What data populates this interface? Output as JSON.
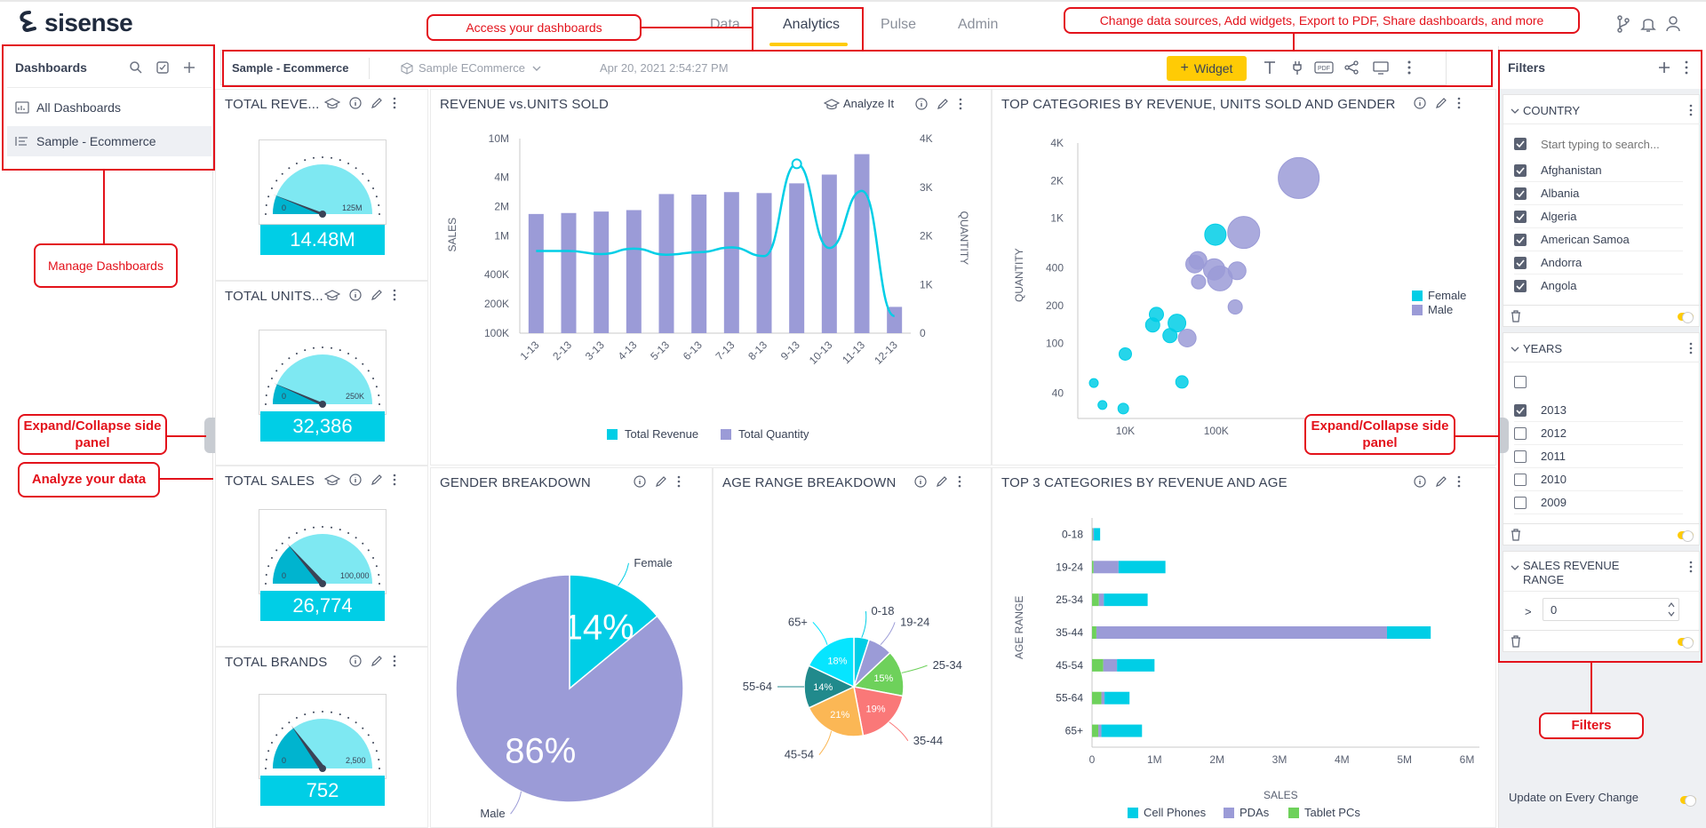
{
  "app": {
    "logo_text": "sisense",
    "nav_tabs": [
      {
        "label": "Data",
        "active": false
      },
      {
        "label": "Analytics",
        "active": true
      },
      {
        "label": "Pulse",
        "active": false
      },
      {
        "label": "Admin",
        "active": false
      }
    ],
    "accent_color": "#ffcb05"
  },
  "left_panel": {
    "title": "Dashboards",
    "items": [
      {
        "label": "All Dashboards",
        "icon": "dashboards-icon",
        "selected": false
      },
      {
        "label": "Sample - Ecommerce",
        "icon": "list-icon",
        "selected": true
      }
    ]
  },
  "toolbar": {
    "dashboard_title": "Sample - Ecommerce",
    "datasource": "Sample ECommerce",
    "timestamp": "Apr 20, 2021 2:54:27 PM",
    "widget_button": "Widget"
  },
  "widgets": {
    "total_revenue": {
      "title": "TOTAL REVE...",
      "min": "0",
      "max": "125M",
      "value": "14.48M",
      "level": 0.12
    },
    "total_units": {
      "title": "TOTAL UNITS...",
      "min": "0",
      "max": "250K",
      "value": "32,386",
      "level": 0.13
    },
    "total_sales": {
      "title": "TOTAL SALES",
      "min": "0",
      "max": "100,000",
      "value": "26,774",
      "level": 0.27
    },
    "total_brands": {
      "title": "TOTAL BRANDS",
      "min": "0",
      "max": "2,500",
      "value": "752",
      "level": 0.3
    },
    "revenue_units": {
      "title": "REVENUE vs.UNITS SOLD",
      "analyze_label": "Analyze It"
    },
    "top_categories": {
      "title": "TOP CATEGORIES BY REVENUE, UNITS SOLD AND GENDER"
    },
    "gender": {
      "title": "GENDER BREAKDOWN"
    },
    "age_range": {
      "title": "AGE RANGE BREAKDOWN"
    },
    "top3": {
      "title": "TOP 3 CATEGORIES BY REVENUE AND AGE"
    }
  },
  "chart_data": [
    {
      "type": "bar",
      "id": "revenue_units",
      "categories": [
        "1-13",
        "2-13",
        "3-13",
        "4-13",
        "5-13",
        "6-13",
        "7-13",
        "8-13",
        "9-13",
        "10-13",
        "11-13",
        "12-13"
      ],
      "series": [
        {
          "name": "Total Revenue",
          "type": "line",
          "axis": "left-log",
          "values": [
            700000,
            700000,
            650000,
            740000,
            640000,
            680000,
            760000,
            620000,
            5500000,
            750000,
            2900000,
            150000
          ]
        },
        {
          "name": "Total Quantity",
          "type": "bar",
          "axis": "right",
          "values": [
            2450,
            2470,
            2500,
            2530,
            2860,
            2850,
            2900,
            2880,
            3080,
            3260,
            3680,
            540
          ]
        }
      ],
      "ylabel": "SALES",
      "y2label": "QUANTITY",
      "yticks": [
        "10M",
        "4M",
        "2M",
        "1M",
        "400K",
        "200K",
        "100K"
      ],
      "y2ticks": [
        "4K",
        "3K",
        "2K",
        "1K",
        "0"
      ],
      "ylim": [
        100000,
        10000000
      ],
      "y2lim": [
        0,
        4000
      ],
      "scale": "log",
      "legend": "bottom",
      "colors": {
        "Total Revenue": "#00cee6",
        "Total Quantity": "#9b9bd7"
      }
    },
    {
      "type": "scatter",
      "id": "top_categories",
      "series": [
        {
          "name": "Female",
          "color": "#00cee6",
          "points": [
            {
              "x": 4500,
              "y": 48,
              "r": 5
            },
            {
              "x": 5600,
              "y": 32,
              "r": 5
            },
            {
              "x": 9500,
              "y": 30,
              "r": 6
            },
            {
              "x": 10000,
              "y": 82,
              "r": 7
            },
            {
              "x": 20000,
              "y": 140,
              "r": 8
            },
            {
              "x": 22000,
              "y": 170,
              "r": 8
            },
            {
              "x": 31000,
              "y": 115,
              "r": 8
            },
            {
              "x": 37000,
              "y": 145,
              "r": 10
            },
            {
              "x": 42000,
              "y": 49,
              "r": 7
            },
            {
              "x": 98000,
              "y": 740,
              "r": 12
            }
          ]
        },
        {
          "name": "Male",
          "color": "#9b9bd7",
          "points": [
            {
              "x": 48000,
              "y": 110,
              "r": 10
            },
            {
              "x": 58000,
              "y": 430,
              "r": 10
            },
            {
              "x": 63000,
              "y": 460,
              "r": 10
            },
            {
              "x": 64000,
              "y": 310,
              "r": 8
            },
            {
              "x": 95000,
              "y": 390,
              "r": 12
            },
            {
              "x": 110000,
              "y": 330,
              "r": 14
            },
            {
              "x": 162000,
              "y": 195,
              "r": 8
            },
            {
              "x": 170000,
              "y": 380,
              "r": 10
            },
            {
              "x": 201000,
              "y": 770,
              "r": 18
            },
            {
              "x": 810000,
              "y": 2100,
              "r": 23
            }
          ]
        }
      ],
      "ylabel": "QUANTITY",
      "xticks": [
        "10K",
        "100K"
      ],
      "yticks": [
        "4K",
        "2K",
        "1K",
        "400",
        "200",
        "100",
        "40"
      ],
      "xlim": [
        3000,
        1000000
      ],
      "ylim": [
        25,
        4000
      ],
      "scale": "log",
      "legend": "right"
    },
    {
      "type": "pie",
      "id": "gender",
      "slices": [
        {
          "label": "Female",
          "value": 14,
          "text": "14%",
          "color": "#00cee6"
        },
        {
          "label": "Male",
          "value": 86,
          "text": "86%",
          "color": "#9b9bd7"
        }
      ]
    },
    {
      "type": "pie",
      "id": "age_range",
      "slices": [
        {
          "label": "0-18",
          "value": 5,
          "text": "",
          "color": "#00cee6"
        },
        {
          "label": "19-24",
          "value": 8,
          "text": "",
          "color": "#9b9bd7"
        },
        {
          "label": "25-34",
          "value": 15,
          "text": "15%",
          "color": "#6ed15b"
        },
        {
          "label": "35-44",
          "value": 19,
          "text": "19%",
          "color": "#fa7878"
        },
        {
          "label": "45-54",
          "value": 21,
          "text": "21%",
          "color": "#fbb755"
        },
        {
          "label": "55-64",
          "value": 14,
          "text": "14%",
          "color": "#218a8c"
        },
        {
          "label": "65+",
          "value": 18,
          "text": "18%",
          "color": "#06e5ff"
        }
      ]
    },
    {
      "type": "bar",
      "id": "top3",
      "orientation": "horizontal",
      "stacked": true,
      "categories": [
        "0-18",
        "19-24",
        "25-34",
        "35-44",
        "45-54",
        "55-64",
        "65+"
      ],
      "series": [
        {
          "name": "Cell Phones",
          "color": "#00cee6",
          "values": [
            100000,
            750000,
            700000,
            700000,
            600000,
            400000,
            650000
          ]
        },
        {
          "name": "PDAs",
          "color": "#9b9bd7",
          "values": [
            20000,
            400000,
            80000,
            4650000,
            220000,
            50000,
            50000
          ]
        },
        {
          "name": "Tablet PCs",
          "color": "#6ed15b",
          "values": [
            10000,
            25000,
            110000,
            70000,
            180000,
            150000,
            100000
          ]
        }
      ],
      "xlabel": "SALES",
      "ylabel": "AGE RANGE",
      "xticks": [
        "0",
        "1M",
        "2M",
        "3M",
        "4M",
        "5M",
        "6M"
      ],
      "xlim": [
        0,
        6000000
      ],
      "legend": "bottom"
    }
  ],
  "filters": {
    "title": "Filters",
    "country": {
      "title": "COUNTRY",
      "search_placeholder": "Start typing to search...",
      "items": [
        "Afghanistan",
        "Albania",
        "Algeria",
        "American Samoa",
        "Andorra",
        "Angola"
      ]
    },
    "years": {
      "title": "YEARS",
      "items": [
        {
          "label": "2013",
          "checked": true
        },
        {
          "label": "2012",
          "checked": false
        },
        {
          "label": "2011",
          "checked": false
        },
        {
          "label": "2010",
          "checked": false
        },
        {
          "label": "2009",
          "checked": false
        }
      ]
    },
    "sales_range": {
      "title": "SALES REVENUE RANGE",
      "operator": ">",
      "value": "0"
    },
    "update_label": "Update on Every Change"
  },
  "annotations": {
    "access": "Access your dashboards",
    "change": "Change data sources, Add widgets, Export to PDF, Share dashboards, and more",
    "manage": "Manage Dashboards",
    "expand_left": "Expand/Collapse side panel",
    "analyze": "Analyze your data",
    "expand_right": "Expand/Collapse side panel",
    "filters": "Filters",
    "color": "#e3121b"
  }
}
